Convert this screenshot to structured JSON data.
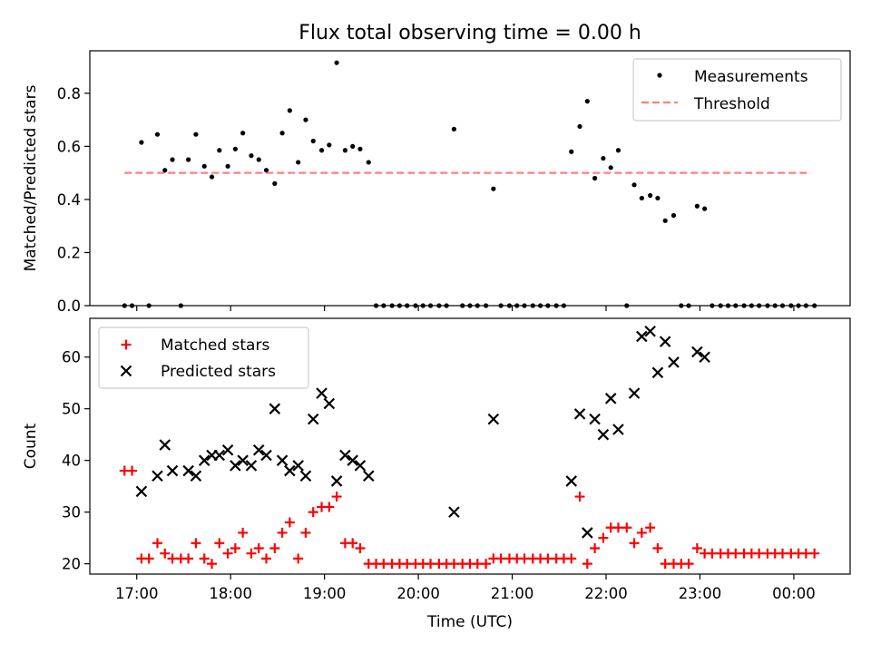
{
  "chart_data": {
    "title": "Flux total observing time = 0.00 h",
    "xlabel": "Time (UTC)",
    "x_axis": {
      "unit": "hours_utc",
      "range": [
        16.5,
        24.6
      ],
      "ticks": [
        17,
        18,
        19,
        20,
        21,
        22,
        23,
        24
      ],
      "tick_labels": [
        "17:00",
        "18:00",
        "19:00",
        "20:00",
        "21:00",
        "22:00",
        "23:00",
        "00:00"
      ]
    },
    "panels": [
      {
        "type": "scatter",
        "ylabel": "Matched/Predicted stars",
        "ylim": [
          0,
          0.96
        ],
        "yticks": [
          0.0,
          0.2,
          0.4,
          0.6,
          0.8
        ],
        "ytick_labels": [
          "0.0",
          "0.2",
          "0.4",
          "0.6",
          "0.8"
        ],
        "legend": {
          "placement": "top-right",
          "entries": [
            "Measurements",
            "Threshold"
          ]
        },
        "threshold": {
          "name": "Threshold",
          "value": 0.5,
          "x_range": [
            16.87,
            24.18
          ],
          "color": "#ff7f7f"
        },
        "series": [
          {
            "name": "Measurements",
            "color": "#000000",
            "points": [
              [
                16.87,
                0.0
              ],
              [
                16.95,
                0.0
              ],
              [
                17.05,
                0.615
              ],
              [
                17.13,
                0.0
              ],
              [
                17.22,
                0.645
              ],
              [
                17.3,
                0.51
              ],
              [
                17.38,
                0.55
              ],
              [
                17.47,
                0.0
              ],
              [
                17.55,
                0.55
              ],
              [
                17.63,
                0.645
              ],
              [
                17.72,
                0.525
              ],
              [
                17.8,
                0.485
              ],
              [
                17.88,
                0.585
              ],
              [
                17.97,
                0.525
              ],
              [
                18.05,
                0.59
              ],
              [
                18.13,
                0.65
              ],
              [
                18.22,
                0.565
              ],
              [
                18.3,
                0.55
              ],
              [
                18.38,
                0.51
              ],
              [
                18.47,
                0.46
              ],
              [
                18.55,
                0.65
              ],
              [
                18.63,
                0.735
              ],
              [
                18.72,
                0.54
              ],
              [
                18.8,
                0.7
              ],
              [
                18.88,
                0.62
              ],
              [
                18.97,
                0.585
              ],
              [
                19.05,
                0.605
              ],
              [
                19.13,
                0.915
              ],
              [
                19.22,
                0.585
              ],
              [
                19.3,
                0.6
              ],
              [
                19.38,
                0.59
              ],
              [
                19.47,
                0.54
              ],
              [
                19.55,
                0.0
              ],
              [
                19.63,
                0.0
              ],
              [
                19.72,
                0.0
              ],
              [
                19.8,
                0.0
              ],
              [
                19.88,
                0.0
              ],
              [
                19.97,
                0.0
              ],
              [
                20.05,
                0.0
              ],
              [
                20.13,
                0.0
              ],
              [
                20.22,
                0.0
              ],
              [
                20.3,
                0.0
              ],
              [
                20.38,
                0.665
              ],
              [
                20.47,
                0.0
              ],
              [
                20.55,
                0.0
              ],
              [
                20.63,
                0.0
              ],
              [
                20.72,
                0.0
              ],
              [
                20.8,
                0.44
              ],
              [
                20.88,
                0.0
              ],
              [
                20.97,
                0.0
              ],
              [
                21.05,
                0.0
              ],
              [
                21.13,
                0.0
              ],
              [
                21.22,
                0.0
              ],
              [
                21.3,
                0.0
              ],
              [
                21.38,
                0.0
              ],
              [
                21.47,
                0.0
              ],
              [
                21.55,
                0.0
              ],
              [
                21.63,
                0.58
              ],
              [
                21.72,
                0.675
              ],
              [
                21.8,
                0.77
              ],
              [
                21.88,
                0.48
              ],
              [
                21.97,
                0.555
              ],
              [
                22.05,
                0.52
              ],
              [
                22.13,
                0.585
              ],
              [
                22.22,
                0.0
              ],
              [
                22.3,
                0.455
              ],
              [
                22.38,
                0.405
              ],
              [
                22.47,
                0.415
              ],
              [
                22.55,
                0.405
              ],
              [
                22.63,
                0.32
              ],
              [
                22.72,
                0.34
              ],
              [
                22.8,
                0.0
              ],
              [
                22.88,
                0.0
              ],
              [
                22.97,
                0.375
              ],
              [
                23.05,
                0.365
              ],
              [
                23.13,
                0.0
              ],
              [
                23.22,
                0.0
              ],
              [
                23.3,
                0.0
              ],
              [
                23.38,
                0.0
              ],
              [
                23.47,
                0.0
              ],
              [
                23.55,
                0.0
              ],
              [
                23.63,
                0.0
              ],
              [
                23.72,
                0.0
              ],
              [
                23.8,
                0.0
              ],
              [
                23.88,
                0.0
              ],
              [
                23.97,
                0.0
              ],
              [
                24.05,
                0.0
              ],
              [
                24.13,
                0.0
              ],
              [
                24.22,
                0.0
              ]
            ]
          }
        ]
      },
      {
        "type": "scatter",
        "ylabel": "Count",
        "ylim": [
          18,
          67.5
        ],
        "yticks": [
          20,
          30,
          40,
          50,
          60
        ],
        "ytick_labels": [
          "20",
          "30",
          "40",
          "50",
          "60"
        ],
        "legend": {
          "placement": "top-left",
          "entries": [
            "Matched stars",
            "Predicted stars"
          ]
        },
        "series": [
          {
            "name": "Matched stars",
            "marker": "plus",
            "color": "#ff0000",
            "points": [
              [
                16.87,
                38
              ],
              [
                16.95,
                38
              ],
              [
                17.05,
                21
              ],
              [
                17.13,
                21
              ],
              [
                17.22,
                24
              ],
              [
                17.3,
                22
              ],
              [
                17.38,
                21
              ],
              [
                17.47,
                21
              ],
              [
                17.55,
                21
              ],
              [
                17.63,
                24
              ],
              [
                17.72,
                21
              ],
              [
                17.8,
                20
              ],
              [
                17.88,
                24
              ],
              [
                17.97,
                22
              ],
              [
                18.05,
                23
              ],
              [
                18.13,
                26
              ],
              [
                18.22,
                22
              ],
              [
                18.3,
                23
              ],
              [
                18.38,
                21
              ],
              [
                18.47,
                23
              ],
              [
                18.55,
                26
              ],
              [
                18.63,
                28
              ],
              [
                18.72,
                21
              ],
              [
                18.8,
                26
              ],
              [
                18.88,
                30
              ],
              [
                18.97,
                31
              ],
              [
                19.05,
                31
              ],
              [
                19.13,
                33
              ],
              [
                19.22,
                24
              ],
              [
                19.3,
                24
              ],
              [
                19.38,
                23
              ],
              [
                19.47,
                20
              ],
              [
                19.55,
                20
              ],
              [
                19.63,
                20
              ],
              [
                19.72,
                20
              ],
              [
                19.8,
                20
              ],
              [
                19.88,
                20
              ],
              [
                19.97,
                20
              ],
              [
                20.05,
                20
              ],
              [
                20.13,
                20
              ],
              [
                20.22,
                20
              ],
              [
                20.3,
                20
              ],
              [
                20.38,
                20
              ],
              [
                20.47,
                20
              ],
              [
                20.55,
                20
              ],
              [
                20.63,
                20
              ],
              [
                20.72,
                20
              ],
              [
                20.8,
                21
              ],
              [
                20.88,
                21
              ],
              [
                20.97,
                21
              ],
              [
                21.05,
                21
              ],
              [
                21.13,
                21
              ],
              [
                21.22,
                21
              ],
              [
                21.3,
                21
              ],
              [
                21.38,
                21
              ],
              [
                21.47,
                21
              ],
              [
                21.55,
                21
              ],
              [
                21.63,
                21
              ],
              [
                21.72,
                33
              ],
              [
                21.8,
                20
              ],
              [
                21.88,
                23
              ],
              [
                21.97,
                25
              ],
              [
                22.05,
                27
              ],
              [
                22.13,
                27
              ],
              [
                22.22,
                27
              ],
              [
                22.3,
                24
              ],
              [
                22.38,
                26
              ],
              [
                22.47,
                27
              ],
              [
                22.55,
                23
              ],
              [
                22.63,
                20
              ],
              [
                22.72,
                20
              ],
              [
                22.8,
                20
              ],
              [
                22.88,
                20
              ],
              [
                22.97,
                23
              ],
              [
                23.05,
                22
              ],
              [
                23.13,
                22
              ],
              [
                23.22,
                22
              ],
              [
                23.3,
                22
              ],
              [
                23.38,
                22
              ],
              [
                23.47,
                22
              ],
              [
                23.55,
                22
              ],
              [
                23.63,
                22
              ],
              [
                23.72,
                22
              ],
              [
                23.8,
                22
              ],
              [
                23.88,
                22
              ],
              [
                23.97,
                22
              ],
              [
                24.05,
                22
              ],
              [
                24.13,
                22
              ],
              [
                24.22,
                22
              ]
            ]
          },
          {
            "name": "Predicted stars",
            "marker": "x",
            "color": "#000000",
            "points": [
              [
                17.05,
                34
              ],
              [
                17.22,
                37
              ],
              [
                17.3,
                43
              ],
              [
                17.38,
                38
              ],
              [
                17.55,
                38
              ],
              [
                17.63,
                37
              ],
              [
                17.72,
                40
              ],
              [
                17.8,
                41
              ],
              [
                17.88,
                41
              ],
              [
                17.97,
                42
              ],
              [
                18.05,
                39
              ],
              [
                18.13,
                40
              ],
              [
                18.22,
                39
              ],
              [
                18.3,
                42
              ],
              [
                18.38,
                41
              ],
              [
                18.47,
                50
              ],
              [
                18.55,
                40
              ],
              [
                18.63,
                38
              ],
              [
                18.72,
                39
              ],
              [
                18.8,
                37
              ],
              [
                18.88,
                48
              ],
              [
                18.97,
                53
              ],
              [
                19.05,
                51
              ],
              [
                19.13,
                36
              ],
              [
                19.22,
                41
              ],
              [
                19.3,
                40
              ],
              [
                19.38,
                39
              ],
              [
                19.47,
                37
              ],
              [
                20.38,
                30
              ],
              [
                20.8,
                48
              ],
              [
                21.63,
                36
              ],
              [
                21.72,
                49
              ],
              [
                21.8,
                26
              ],
              [
                21.88,
                48
              ],
              [
                21.97,
                45
              ],
              [
                22.05,
                52
              ],
              [
                22.13,
                46
              ],
              [
                22.3,
                53
              ],
              [
                22.38,
                64
              ],
              [
                22.47,
                65
              ],
              [
                22.55,
                57
              ],
              [
                22.63,
                63
              ],
              [
                22.72,
                59
              ],
              [
                22.97,
                61
              ],
              [
                23.05,
                60
              ]
            ]
          }
        ]
      }
    ]
  }
}
